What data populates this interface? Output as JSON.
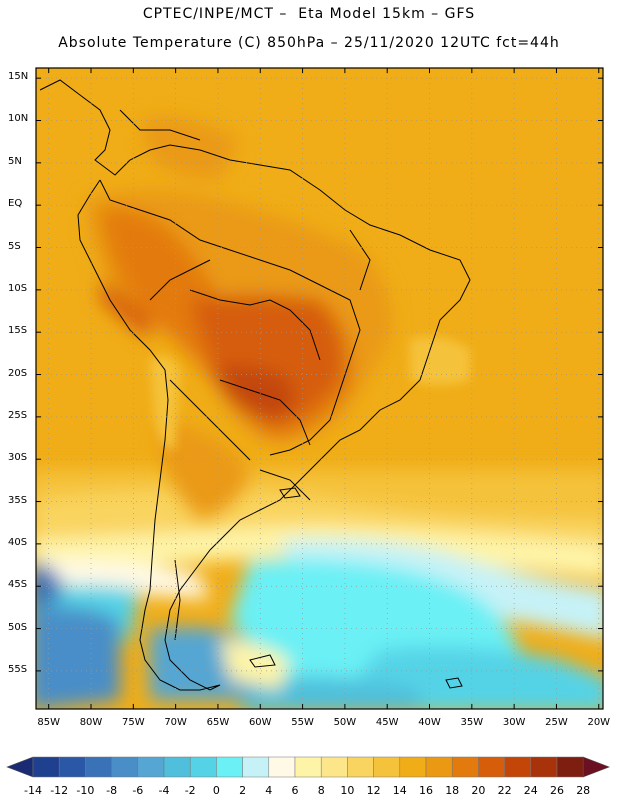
{
  "title_line1": "CPTEC/INPE/MCT –  Eta Model 15km – GFS",
  "title_line2": "Absolute Temperature (C) 850hPa – 25/11/2020 12UTC fct=44h",
  "lat_labels": [
    "15N",
    "10N",
    "5N",
    "EQ",
    "5S",
    "10S",
    "15S",
    "20S",
    "25S",
    "30S",
    "35S",
    "40S",
    "45S",
    "50S",
    "55S"
  ],
  "lat_values": [
    15,
    10,
    5,
    0,
    -5,
    -10,
    -15,
    -20,
    -25,
    -30,
    -35,
    -40,
    -45,
    -50,
    -55
  ],
  "lon_labels": [
    "85W",
    "80W",
    "75W",
    "70W",
    "65W",
    "60W",
    "55W",
    "50W",
    "45W",
    "40W",
    "35W",
    "30W",
    "25W",
    "20W"
  ],
  "lon_values": [
    -85,
    -80,
    -75,
    -70,
    -65,
    -60,
    -55,
    -50,
    -45,
    -40,
    -35,
    -30,
    -25,
    -20
  ],
  "colorbar": {
    "labels": [
      "-14",
      "-12",
      "-10",
      "-8",
      "-6",
      "-4",
      "-2",
      "0",
      "2",
      "4",
      "6",
      "8",
      "10",
      "12",
      "14",
      "16",
      "18",
      "20",
      "22",
      "24",
      "26",
      "28"
    ],
    "colors": [
      "#1f3f8f",
      "#2b58a6",
      "#3a72b8",
      "#4a8ec8",
      "#55a6d3",
      "#4fbfdc",
      "#55d3e6",
      "#6af0f5",
      "#c6f2f7",
      "#fff9e6",
      "#fef4a8",
      "#fde58a",
      "#f9d45f",
      "#f5c23b",
      "#f0ad17",
      "#ea9a12",
      "#e37a0e",
      "#d65d0a",
      "#c34608",
      "#a8320a",
      "#7e1e10"
    ],
    "low_color": "#1a2b74",
    "high_color": "#6b1020"
  }
}
